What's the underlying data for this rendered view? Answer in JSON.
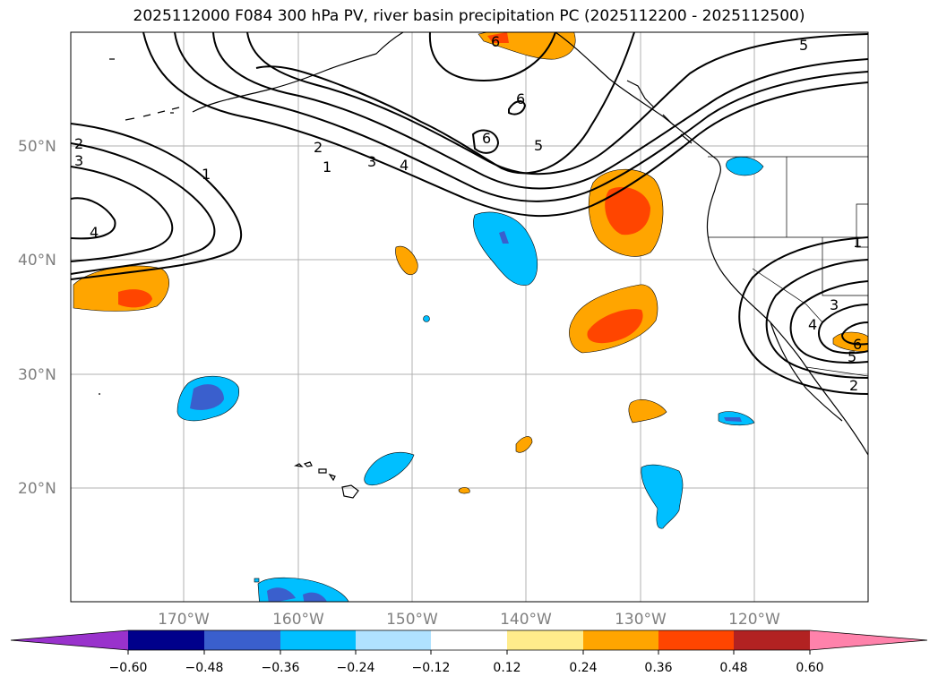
{
  "title": "2025112000 F084 300 hPa PV, river basin precipitation PC (2025112200 - 2025112500)",
  "map": {
    "lat_labels": [
      "50°N",
      "40°N",
      "30°N",
      "20°N"
    ],
    "lon_labels": [
      "170°W",
      "160°W",
      "150°W",
      "140°W",
      "130°W",
      "120°W"
    ],
    "contour_labels": [
      "2",
      "3",
      "1",
      "4",
      "2",
      "1",
      "3",
      "4",
      "6",
      "6",
      "5",
      "5",
      "1",
      "3",
      "4",
      "2",
      "5",
      "6",
      "6"
    ]
  },
  "colorbar": {
    "ticks": [
      "−0.60",
      "−0.48",
      "−0.36",
      "−0.24",
      "−0.12",
      "0.12",
      "0.24",
      "0.36",
      "0.48",
      "0.60"
    ],
    "colors": [
      "#9932cc",
      "#00008b",
      "#3a5fcd",
      "#00bfff",
      "#b0e2ff",
      "#ffffff",
      "#ffec8b",
      "#ffa500",
      "#ff4500",
      "#b22222",
      "#ff82ab"
    ]
  }
}
